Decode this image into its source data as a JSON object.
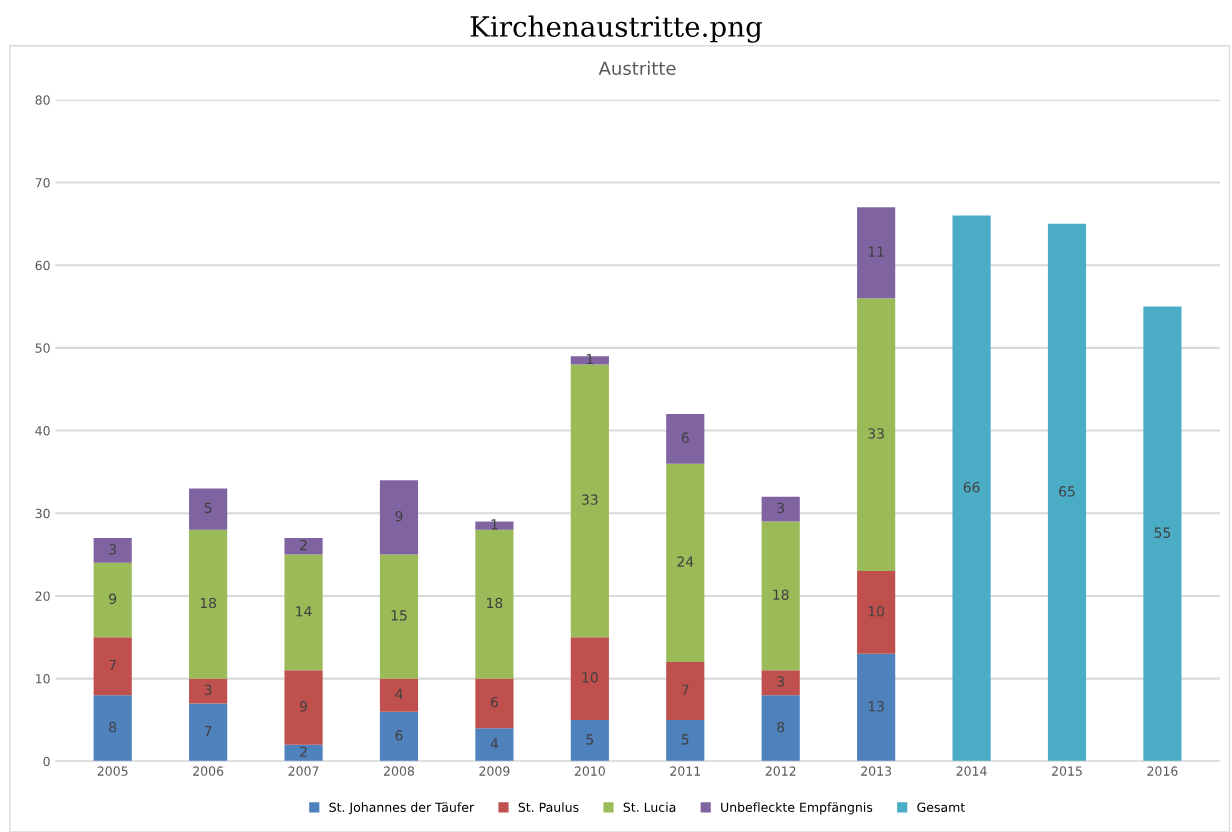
{
  "chart_data": {
    "type": "bar",
    "title": "Kirchenaustritte.png",
    "subtitle": "Austritte",
    "stacked": true,
    "data_labels": true,
    "grid": "y",
    "legend": "bottom",
    "categories": [
      "2005",
      "2006",
      "2007",
      "2008",
      "2009",
      "2010",
      "2011",
      "2012",
      "2013",
      "2014",
      "2015",
      "2016"
    ],
    "ylim": [
      0,
      80
    ],
    "yticks": [
      0,
      10,
      20,
      30,
      40,
      50,
      60,
      70,
      80
    ],
    "series": [
      {
        "name": "St. Johannes der Täufer",
        "color": "#4f81bd",
        "values": [
          8,
          7,
          2,
          6,
          4,
          5,
          5,
          8,
          13,
          null,
          null,
          null
        ]
      },
      {
        "name": "St. Paulus",
        "color": "#c0504d",
        "values": [
          7,
          3,
          9,
          4,
          6,
          10,
          7,
          3,
          10,
          null,
          null,
          null
        ]
      },
      {
        "name": "St. Lucia",
        "color": "#9bbb59",
        "values": [
          9,
          18,
          14,
          15,
          18,
          33,
          24,
          18,
          33,
          null,
          null,
          null
        ]
      },
      {
        "name": "Unbefleckte Empfängnis",
        "color": "#8064a2",
        "values": [
          3,
          5,
          2,
          9,
          1,
          1,
          6,
          3,
          11,
          null,
          null,
          null
        ]
      },
      {
        "name": "Gesamt",
        "color": "#4bacc6",
        "values": [
          null,
          null,
          null,
          null,
          null,
          null,
          null,
          null,
          null,
          66,
          65,
          55
        ]
      }
    ]
  }
}
